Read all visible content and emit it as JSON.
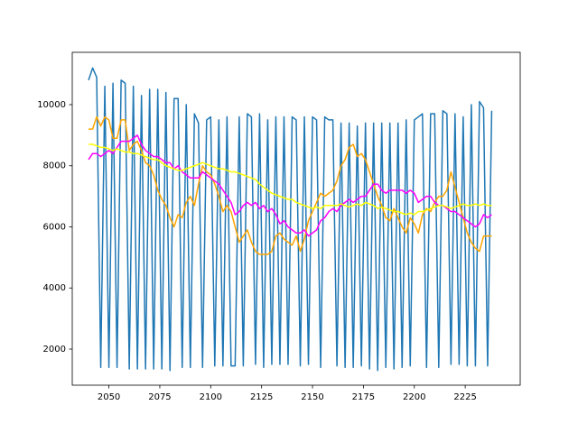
{
  "chart_data": {
    "type": "line",
    "x": [
      2040,
      2042,
      2044,
      2046,
      2048,
      2050,
      2052,
      2054,
      2056,
      2058,
      2060,
      2062,
      2064,
      2066,
      2068,
      2070,
      2072,
      2074,
      2076,
      2078,
      2080,
      2082,
      2084,
      2086,
      2088,
      2090,
      2092,
      2094,
      2096,
      2098,
      2100,
      2102,
      2104,
      2106,
      2108,
      2110,
      2112,
      2114,
      2116,
      2118,
      2120,
      2122,
      2124,
      2126,
      2128,
      2130,
      2132,
      2134,
      2136,
      2138,
      2140,
      2142,
      2144,
      2146,
      2148,
      2150,
      2152,
      2154,
      2156,
      2158,
      2160,
      2162,
      2164,
      2166,
      2168,
      2170,
      2172,
      2174,
      2176,
      2178,
      2180,
      2182,
      2184,
      2186,
      2188,
      2190,
      2192,
      2194,
      2196,
      2198,
      2200,
      2202,
      2204,
      2206,
      2208,
      2210,
      2212,
      2214,
      2216,
      2218,
      2220,
      2222,
      2224,
      2226,
      2228,
      2230,
      2232,
      2234,
      2236,
      2238
    ],
    "series": [
      {
        "color": "#1f77b4",
        "values": [
          10800,
          11200,
          10900,
          1400,
          10600,
          1400,
          10700,
          1400,
          10800,
          10700,
          1350,
          10600,
          1350,
          10300,
          1350,
          10500,
          1350,
          10500,
          1350,
          10400,
          1300,
          10200,
          10200,
          1400,
          10000,
          1400,
          9700,
          9400,
          1400,
          9500,
          9600,
          1450,
          9500,
          1450,
          9600,
          1450,
          1450,
          9600,
          1450,
          9700,
          9600,
          1500,
          9700,
          1400,
          9500,
          1500,
          9600,
          1500,
          9600,
          1500,
          9600,
          9500,
          1450,
          9600,
          1500,
          9600,
          9500,
          1400,
          9600,
          9500,
          9500,
          1450,
          9400,
          1400,
          9400,
          1400,
          9300,
          1450,
          9400,
          1350,
          9400,
          1300,
          9400,
          1400,
          9400,
          1350,
          9400,
          1400,
          9500,
          1450,
          9500,
          9600,
          9700,
          1400,
          9700,
          9700,
          1400,
          9800,
          9700,
          1500,
          9700,
          1500,
          9600,
          1450,
          10000,
          1450,
          10100,
          9900,
          1450,
          9800
        ]
      },
      {
        "color": "orange",
        "values": [
          9200,
          9200,
          9600,
          9300,
          9600,
          9500,
          8900,
          8900,
          9500,
          9500,
          8500,
          8700,
          8800,
          8500,
          8100,
          8000,
          7700,
          7200,
          6900,
          6700,
          6300,
          6000,
          6400,
          6300,
          6800,
          7000,
          6700,
          7400,
          8000,
          7800,
          7700,
          7400,
          7000,
          6500,
          6700,
          6500,
          6000,
          5500,
          5700,
          5900,
          5500,
          5200,
          5100,
          5100,
          5100,
          5200,
          5700,
          5800,
          5600,
          5500,
          5400,
          5700,
          5200,
          5600,
          6200,
          6500,
          6800,
          7100,
          7000,
          7100,
          7200,
          7500,
          8000,
          8200,
          8600,
          8700,
          8300,
          8400,
          8200,
          7800,
          7400,
          7000,
          6700,
          6300,
          6200,
          6600,
          6300,
          6000,
          5800,
          6300,
          6100,
          5800,
          6400,
          6600,
          6500,
          6800,
          7000,
          7000,
          7200,
          7800,
          7300,
          6800,
          6300,
          5800,
          5500,
          5300,
          5200,
          5700,
          5700,
          5700
        ]
      },
      {
        "color": "magenta",
        "values": [
          8200,
          8400,
          8400,
          8300,
          8400,
          8500,
          8400,
          8600,
          8800,
          8800,
          8800,
          8900,
          9000,
          8700,
          8500,
          8400,
          8300,
          8300,
          8200,
          8100,
          8100,
          7900,
          8000,
          7800,
          7700,
          7600,
          7600,
          7600,
          7800,
          7700,
          7600,
          7500,
          7400,
          7200,
          7000,
          6800,
          6400,
          6500,
          6700,
          6800,
          6700,
          6800,
          6600,
          6700,
          6500,
          6600,
          6400,
          6100,
          6200,
          6000,
          5900,
          5800,
          5800,
          5900,
          5700,
          5800,
          5900,
          6200,
          6300,
          6500,
          6600,
          6500,
          6700,
          6800,
          6900,
          6800,
          6900,
          7000,
          7000,
          7200,
          7400,
          7400,
          7200,
          7100,
          7200,
          7200,
          7200,
          7200,
          7100,
          7200,
          7100,
          6800,
          6900,
          7000,
          7000,
          6800,
          6700,
          6700,
          6600,
          6500,
          6500,
          6400,
          6300,
          6200,
          6100,
          6000,
          6100,
          6400,
          6300,
          6400
        ]
      },
      {
        "color": "yellow",
        "values": [
          8700,
          8700,
          8650,
          8600,
          8600,
          8550,
          8500,
          8550,
          8500,
          8450,
          8450,
          8400,
          8400,
          8350,
          8300,
          8250,
          8200,
          8200,
          8100,
          8000,
          7950,
          7900,
          7850,
          7850,
          7900,
          7950,
          8000,
          8050,
          8100,
          8050,
          8000,
          7950,
          7900,
          7900,
          7850,
          7800,
          7800,
          7750,
          7700,
          7650,
          7600,
          7550,
          7400,
          7300,
          7200,
          7100,
          7050,
          7000,
          6950,
          6900,
          6900,
          6800,
          6750,
          6700,
          6650,
          6600,
          6650,
          6600,
          6700,
          6700,
          6700,
          6700,
          6750,
          6700,
          6650,
          6700,
          6750,
          6700,
          6800,
          6750,
          6700,
          6600,
          6650,
          6600,
          6550,
          6500,
          6500,
          6450,
          6400,
          6450,
          6400,
          6500,
          6500,
          6550,
          6600,
          6650,
          6700,
          6700,
          6650,
          6600,
          6650,
          6700,
          6750,
          6700,
          6700,
          6750,
          6700,
          6750,
          6700,
          6700
        ]
      }
    ],
    "xlim": [
      2032,
      2252
    ],
    "xticks": [
      2050,
      2075,
      2100,
      2125,
      2150,
      2175,
      2200,
      2225
    ],
    "ylim": [
      819,
      11712
    ],
    "yticks": [
      2000,
      4000,
      6000,
      8000,
      10000
    ]
  }
}
